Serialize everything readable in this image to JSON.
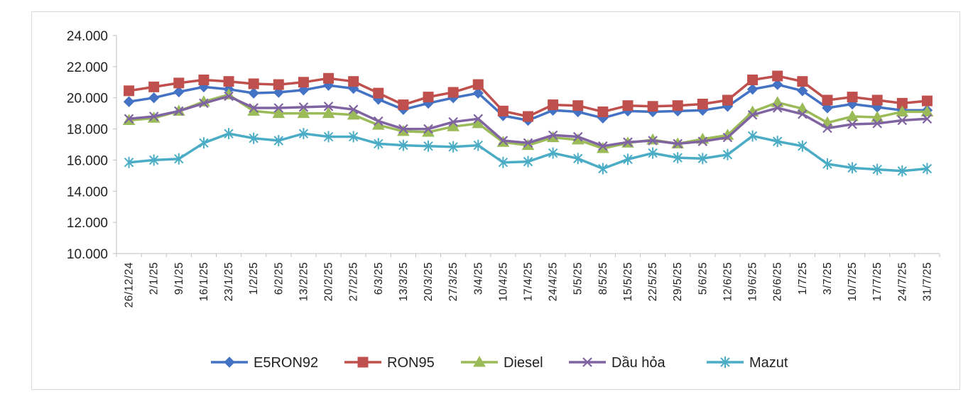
{
  "chart_data": {
    "type": "line",
    "title": "",
    "xlabel": "",
    "ylabel": "",
    "ylim": [
      10000,
      24000
    ],
    "yticks": [
      "10.000",
      "12.000",
      "14.000",
      "16.000",
      "18.000",
      "20.000",
      "22.000",
      "24.000"
    ],
    "grid": false,
    "legend": "bottom",
    "categories": [
      "26/12/24",
      "2/1/25",
      "9/1/25",
      "16/1/25",
      "23/1/25",
      "1/2/25",
      "6/2/25",
      "13/2/25",
      "20/2/25",
      "27/2/25",
      "6/3/25",
      "13/3/25",
      "20/3/25",
      "27/3/25",
      "3/4/25",
      "10/4/25",
      "17/4/25",
      "24/4/25",
      "5/5/25",
      "8/5/25",
      "15/5/25",
      "22/5/25",
      "29/5/25",
      "5/6/25",
      "12/6/25",
      "19/6/25",
      "26/6/25",
      "1/7/25",
      "3/7/25",
      "10/7/25",
      "17/7/25",
      "24/7/25",
      "31/7/25"
    ],
    "series": [
      {
        "name": "E5RON92",
        "color": "#4472c4",
        "marker": "diamond",
        "values": [
          19750,
          20000,
          20380,
          20700,
          20550,
          20300,
          20350,
          20500,
          20800,
          20600,
          19900,
          19250,
          19650,
          20000,
          20300,
          18850,
          18550,
          19200,
          19100,
          18700,
          19150,
          19100,
          19150,
          19200,
          19450,
          20550,
          20850,
          20450,
          19350,
          19600,
          19400,
          19200,
          19200
        ]
      },
      {
        "name": "RON95",
        "color": "#c0504d",
        "marker": "square",
        "values": [
          20450,
          20700,
          20950,
          21150,
          21050,
          20900,
          20850,
          21000,
          21250,
          21050,
          20300,
          19550,
          20050,
          20350,
          20850,
          19150,
          18800,
          19550,
          19500,
          19100,
          19500,
          19450,
          19500,
          19600,
          19850,
          21150,
          21400,
          21050,
          19850,
          20050,
          19850,
          19650,
          19800
        ]
      },
      {
        "name": "Diesel",
        "color": "#9bbb59",
        "marker": "triangle",
        "values": [
          18550,
          18700,
          19150,
          19750,
          20200,
          19150,
          19000,
          19000,
          19000,
          18900,
          18250,
          17850,
          17800,
          18150,
          18350,
          17150,
          16950,
          17450,
          17300,
          16750,
          17100,
          17300,
          17050,
          17350,
          17600,
          19100,
          19700,
          19300,
          18400,
          18800,
          18750,
          19100,
          19100
        ]
      },
      {
        "name": "Dầu hỏa",
        "color": "#8064a2",
        "marker": "x",
        "values": [
          18650,
          18800,
          19150,
          19650,
          20100,
          19350,
          19350,
          19400,
          19450,
          19250,
          18500,
          18000,
          18000,
          18450,
          18650,
          17250,
          17100,
          17600,
          17500,
          16900,
          17150,
          17250,
          17050,
          17200,
          17450,
          18900,
          19350,
          18950,
          18050,
          18300,
          18350,
          18550,
          18650
        ]
      },
      {
        "name": "Mazut",
        "color": "#4bacc6",
        "marker": "star",
        "values": [
          15850,
          16000,
          16080,
          17100,
          17700,
          17400,
          17250,
          17700,
          17500,
          17500,
          17050,
          16950,
          16900,
          16850,
          16950,
          15850,
          15900,
          16450,
          16100,
          15450,
          16050,
          16450,
          16150,
          16100,
          16350,
          17550,
          17200,
          16900,
          15750,
          15500,
          15400,
          15300,
          15450
        ]
      }
    ]
  }
}
